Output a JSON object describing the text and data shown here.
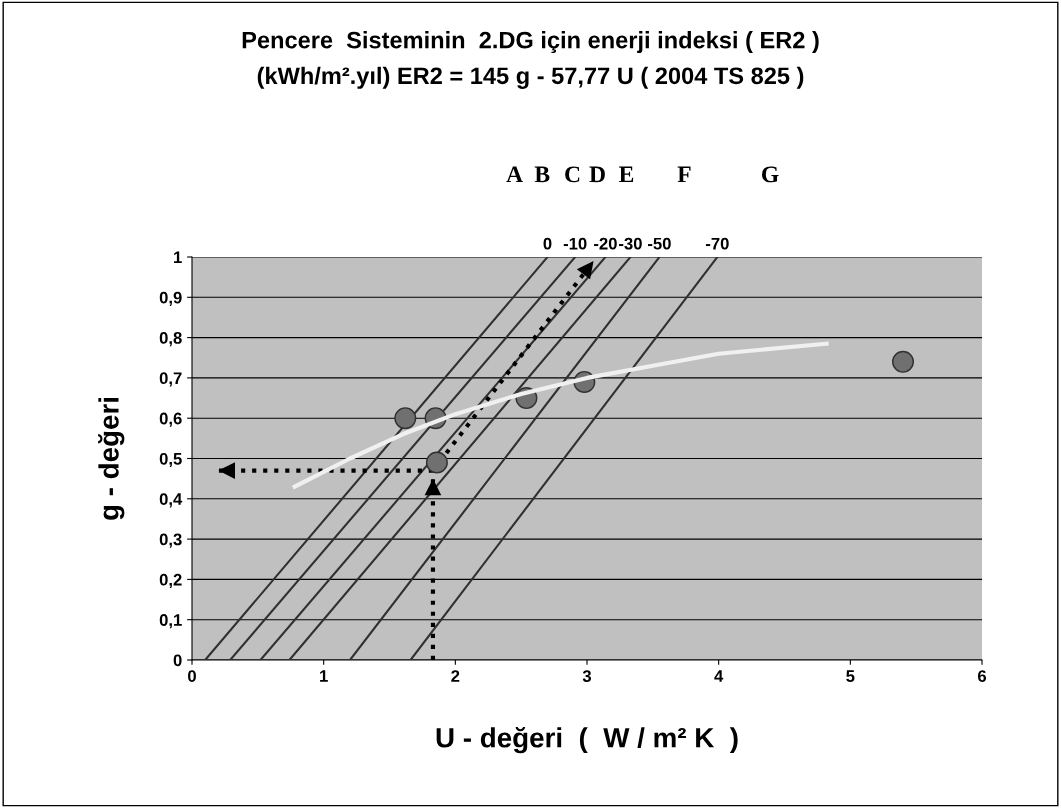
{
  "chart_data": {
    "type": "scatter",
    "title": "Pencere  Sisteminin  2.DG için enerji indeksi ( ER2 )\n(kWh/m².yıl) ER2 = 145 g - 57,77 U ( 2004 TS 825 )",
    "xlabel": "U - değeri  (  W / m² K  )",
    "ylabel": "g - değeri",
    "xlim": [
      0,
      6
    ],
    "xticks": [
      0,
      1,
      2,
      3,
      4,
      5,
      6
    ],
    "ylim": [
      0,
      1
    ],
    "yticks": [
      {
        "value": 0,
        "label": "0"
      },
      {
        "value": 0.1,
        "label": "0,1"
      },
      {
        "value": 0.2,
        "label": "0,2"
      },
      {
        "value": 0.3,
        "label": "0,3"
      },
      {
        "value": 0.4,
        "label": "0,4"
      },
      {
        "value": 0.5,
        "label": "0,5"
      },
      {
        "value": 0.6,
        "label": "0,6"
      },
      {
        "value": 0.7,
        "label": "0,7"
      },
      {
        "value": 0.8,
        "label": "0,8"
      },
      {
        "value": 0.9,
        "label": "0,9"
      },
      {
        "value": 1,
        "label": "1"
      }
    ],
    "grid": "y",
    "legend": false,
    "series": [
      {
        "name": "0",
        "type": "line",
        "color": "#303030",
        "x": [
          0.1,
          2.7
        ],
        "values": [
          0,
          1
        ]
      },
      {
        "name": "-10",
        "type": "line",
        "color": "#303030",
        "x": [
          0.29,
          2.91
        ],
        "values": [
          0,
          1
        ]
      },
      {
        "name": "-20",
        "type": "line",
        "color": "#303030",
        "x": [
          0.52,
          3.14
        ],
        "values": [
          0,
          1
        ]
      },
      {
        "name": "-30",
        "type": "line",
        "color": "#303030",
        "x": [
          0.74,
          3.33
        ],
        "values": [
          0,
          1
        ]
      },
      {
        "name": "-50",
        "type": "line",
        "color": "#303030",
        "x": [
          1.2,
          3.55
        ],
        "values": [
          0,
          1
        ]
      },
      {
        "name": "-70",
        "type": "line",
        "color": "#303030",
        "x": [
          1.66,
          3.99
        ],
        "values": [
          0,
          1
        ]
      },
      {
        "type": "line",
        "color": "#f0f0f0",
        "x": [
          0.78,
          1.2,
          1.6,
          2.0,
          2.5,
          3.0,
          3.5,
          4.0,
          4.82
        ],
        "values": [
          0.43,
          0.5,
          0.56,
          0.61,
          0.66,
          0.7,
          0.73,
          0.76,
          0.785
        ]
      },
      {
        "type": "line",
        "line_style": "dotted",
        "color": "#000000",
        "x": [
          1.83,
          1.83
        ],
        "values": [
          0,
          0.45
        ]
      },
      {
        "type": "line",
        "line_style": "dotted",
        "color": "#000000",
        "x": [
          1.83,
          0.2
        ],
        "values": [
          0.47,
          0.47
        ]
      },
      {
        "type": "line",
        "line_style": "dotted",
        "color": "#000000",
        "x": [
          1.83,
          3.05
        ],
        "values": [
          0.47,
          0.99
        ]
      },
      {
        "marker": "circle",
        "color": "#707070",
        "x": [
          1.62,
          1.85,
          1.86,
          2.54,
          2.98,
          5.4
        ],
        "values": [
          0.6,
          0.6,
          0.49,
          0.65,
          0.69,
          0.74
        ]
      }
    ],
    "annotations": [
      "A",
      "B",
      "C",
      "D",
      "E",
      "F",
      "G"
    ]
  }
}
